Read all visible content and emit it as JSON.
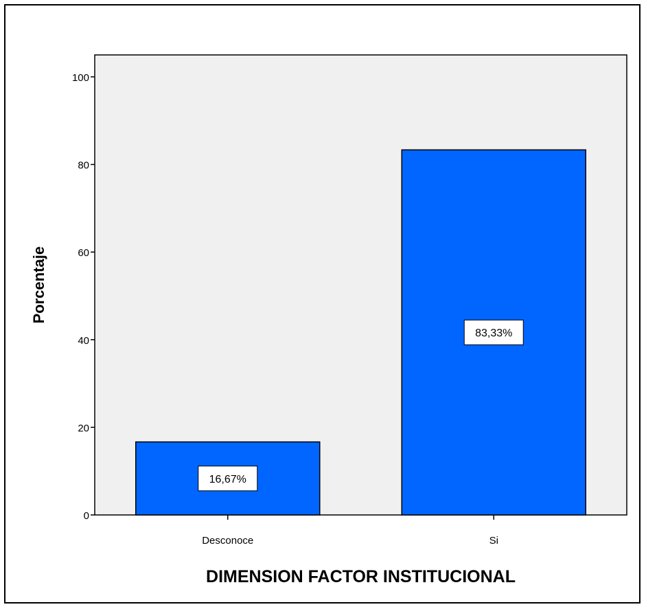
{
  "chart_data": {
    "type": "bar",
    "categories": [
      "Desconoce",
      "Si"
    ],
    "values": [
      16.67,
      83.33
    ],
    "data_labels": [
      "16,67%",
      "83,33%"
    ],
    "title": "",
    "xlabel": "DIMENSION FACTOR INSTITUCIONAL",
    "ylabel": "Porcentaje",
    "ylim": [
      0,
      105
    ],
    "yticks": [
      0,
      20,
      40,
      60,
      80,
      100
    ],
    "grid": false,
    "legend": "none"
  },
  "colors": {
    "bar": "#0066ff",
    "plot_background": "#f0f0f0",
    "axis": "#000000"
  }
}
